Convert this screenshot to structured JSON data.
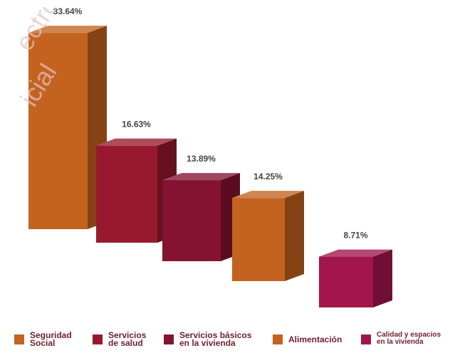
{
  "chart_data": {
    "type": "bar",
    "style": "3d",
    "categories": [
      "Seguridad\nSocial",
      "Servicios\nde salud",
      "Servicios básicos\nen la vivienda",
      "Alimentación",
      "Calidad y espacios\nen la vivienda"
    ],
    "values": [
      33.64,
      16.63,
      13.89,
      14.25,
      8.71
    ],
    "value_labels": [
      "33.64%",
      "16.63%",
      "13.89%",
      "14.25%",
      "8.71%"
    ],
    "colors": [
      "#c4621f",
      "#98192e",
      "#861232",
      "#c4621f",
      "#a2164b"
    ],
    "legend_position": "bottom",
    "grid": false,
    "title": "",
    "xlabel": "",
    "ylabel": ""
  },
  "watermark": {
    "lines": [
      "ectro",
      "icial"
    ],
    "color": "#e2c4c4"
  }
}
